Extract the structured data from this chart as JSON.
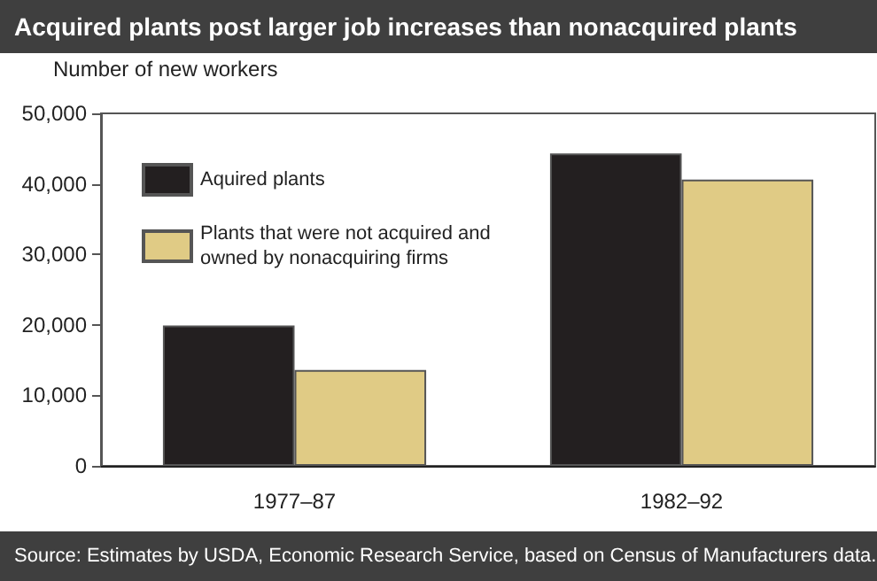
{
  "chart_data": {
    "type": "bar",
    "title": "Acquired plants post larger job increases than nonacquired plants",
    "ylabel": "Number of new workers",
    "categories": [
      "1977–87",
      "1982–92"
    ],
    "series": [
      {
        "name": "Aquired plants",
        "color": "#231f20",
        "values": [
          19900,
          44300
        ]
      },
      {
        "name": "Plants that were not acquired and owned by nonacquiring firms",
        "color": "#e0cb85",
        "values": [
          13600,
          40600
        ]
      }
    ],
    "ylim": [
      0,
      50000
    ],
    "yticks": [
      0,
      {
        "value": 10000,
        "label": "10,000"
      },
      {
        "value": 20000,
        "label": "20,000"
      },
      {
        "value": 30000,
        "label": "30,000"
      },
      {
        "value": 40000,
        "label": "40,000"
      },
      {
        "value": 50000,
        "label": "50,000"
      }
    ],
    "grid": false,
    "legend": "top left",
    "annotations": [
      "Source: Estimates by USDA, Economic Research Service, based on Census of Manufacturers data."
    ]
  }
}
